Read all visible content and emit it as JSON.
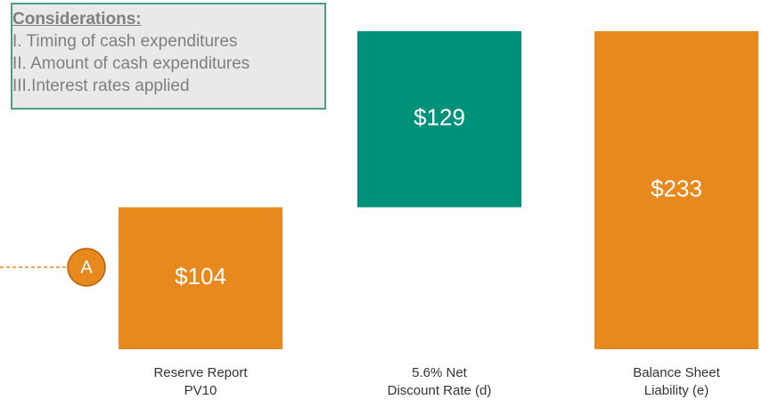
{
  "chart_data": {
    "type": "waterfall",
    "categories": [
      "Reserve Report\nPV10",
      "5.6% Net\nDiscount Rate (d)",
      "Balance Sheet\nLiability (e)"
    ],
    "values": [
      104,
      129,
      233
    ],
    "value_labels": [
      "$104",
      "$129",
      "$233"
    ],
    "is_total": [
      false,
      false,
      true
    ],
    "colors": [
      "#e8891d",
      "#00917a",
      "#e8891d"
    ],
    "marker": "A",
    "considerations": {
      "title": "Considerations:",
      "items": [
        "I.  Timing of cash expenditures",
        "II. Amount of cash expenditures",
        "III.Interest rates applied"
      ]
    }
  }
}
